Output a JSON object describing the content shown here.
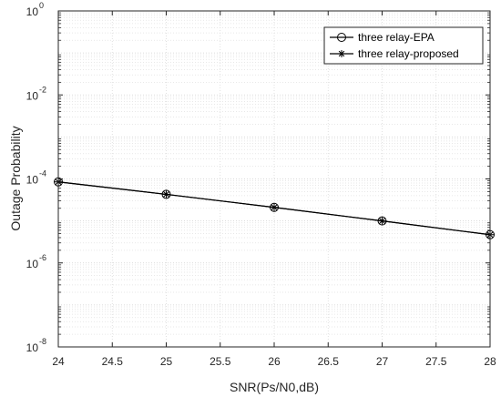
{
  "chart_data": {
    "type": "line",
    "xlabel": "SNR(Ps/N0,dB)",
    "ylabel": "Outage Probability",
    "xlim": [
      24,
      28
    ],
    "ylim": [
      1e-08,
      1
    ],
    "yscale": "log",
    "grid": true,
    "legend_position": "top-right",
    "xticks": [
      "24",
      "24.5",
      "25",
      "25.5",
      "26",
      "26.5",
      "27",
      "27.5",
      "28"
    ],
    "yticks": [
      {
        "value": 1e-08,
        "base": "10",
        "exp": "-8"
      },
      {
        "value": 1e-06,
        "base": "10",
        "exp": "-6"
      },
      {
        "value": 0.0001,
        "base": "10",
        "exp": "-4"
      },
      {
        "value": 0.01,
        "base": "10",
        "exp": "-2"
      },
      {
        "value": 1,
        "base": "10",
        "exp": "0"
      }
    ],
    "x": [
      24,
      25,
      26,
      27,
      28
    ],
    "series": [
      {
        "name": "three relay-EPA",
        "marker": "circle",
        "color": "#000000",
        "values": [
          8.5e-05,
          4.3e-05,
          2.1e-05,
          1e-05,
          4.7e-06
        ]
      },
      {
        "name": "three relay-proposed",
        "marker": "star",
        "color": "#000000",
        "values": [
          8.5e-05,
          4.3e-05,
          2.1e-05,
          1e-05,
          4.7e-06
        ]
      }
    ]
  }
}
